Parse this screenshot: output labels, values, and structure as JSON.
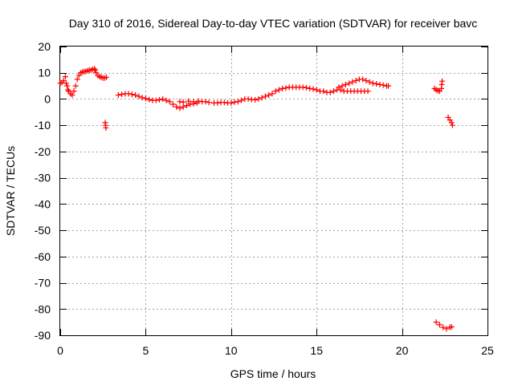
{
  "chart_data": {
    "type": "scatter",
    "title": "Day 310 of 2016, Sidereal Day-to-day VTEC variation (SDTVAR) for receiver bavc",
    "xlabel": "GPS time / hours",
    "ylabel": "SDTVAR / TECUs",
    "xlim": [
      0,
      25
    ],
    "ylim": [
      -90,
      20
    ],
    "xticks": [
      "0",
      "5",
      "10",
      "15",
      "20",
      "25"
    ],
    "yticks": [
      "20",
      "10",
      "0",
      "-10",
      "-20",
      "-30",
      "-40",
      "-50",
      "-60",
      "-70",
      "-80",
      "-90"
    ],
    "grid": true,
    "marker": "+",
    "color": "#ff0000",
    "series": [
      {
        "name": "SDTVAR",
        "points": [
          [
            0.0,
            6.0
          ],
          [
            0.1,
            6.3
          ],
          [
            0.2,
            7.0
          ],
          [
            0.3,
            8.5
          ],
          [
            0.35,
            6.0
          ],
          [
            0.4,
            5.0
          ],
          [
            0.45,
            3.5
          ],
          [
            0.5,
            3.0
          ],
          [
            0.6,
            2.0
          ],
          [
            0.7,
            1.5
          ],
          [
            0.8,
            3.0
          ],
          [
            0.9,
            5.0
          ],
          [
            1.0,
            7.5
          ],
          [
            1.1,
            9.0
          ],
          [
            1.2,
            10.0
          ],
          [
            1.3,
            10.3
          ],
          [
            1.4,
            10.5
          ],
          [
            1.5,
            10.5
          ],
          [
            1.6,
            10.8
          ],
          [
            1.7,
            11.0
          ],
          [
            1.8,
            11.0
          ],
          [
            1.9,
            11.3
          ],
          [
            2.0,
            11.5
          ],
          [
            2.05,
            11.0
          ],
          [
            2.1,
            10.0
          ],
          [
            2.2,
            9.0
          ],
          [
            2.3,
            8.5
          ],
          [
            2.4,
            8.3
          ],
          [
            2.5,
            8.0
          ],
          [
            2.6,
            8.0
          ],
          [
            2.7,
            8.3
          ],
          [
            2.63,
            -9.0
          ],
          [
            2.65,
            -10.0
          ],
          [
            2.67,
            -11.0
          ],
          [
            3.4,
            1.5
          ],
          [
            3.6,
            1.8
          ],
          [
            3.8,
            2.0
          ],
          [
            4.0,
            2.0
          ],
          [
            4.2,
            1.8
          ],
          [
            4.4,
            1.5
          ],
          [
            4.6,
            1.0
          ],
          [
            4.8,
            0.5
          ],
          [
            5.0,
            0.2
          ],
          [
            5.2,
            -0.2
          ],
          [
            5.4,
            -0.5
          ],
          [
            5.6,
            -0.5
          ],
          [
            5.8,
            -0.3
          ],
          [
            6.0,
            0.0
          ],
          [
            6.2,
            -0.5
          ],
          [
            6.4,
            -1.0
          ],
          [
            6.6,
            -2.0
          ],
          [
            6.8,
            -3.0
          ],
          [
            7.0,
            -3.5
          ],
          [
            7.2,
            -3.0
          ],
          [
            7.4,
            -2.5
          ],
          [
            7.6,
            -2.0
          ],
          [
            7.8,
            -1.8
          ],
          [
            8.0,
            -1.5
          ],
          [
            7.0,
            -1.0
          ],
          [
            7.2,
            -1.2
          ],
          [
            7.5,
            -0.8
          ],
          [
            7.8,
            -1.0
          ],
          [
            8.1,
            -0.8
          ],
          [
            8.3,
            -1.0
          ],
          [
            8.5,
            -1.0
          ],
          [
            8.7,
            -1.3
          ],
          [
            9.0,
            -1.5
          ],
          [
            9.2,
            -1.5
          ],
          [
            9.4,
            -1.3
          ],
          [
            9.6,
            -1.3
          ],
          [
            9.8,
            -1.5
          ],
          [
            10.0,
            -1.5
          ],
          [
            10.2,
            -1.2
          ],
          [
            10.4,
            -1.0
          ],
          [
            10.6,
            -0.5
          ],
          [
            10.8,
            0.0
          ],
          [
            11.0,
            0.0
          ],
          [
            11.2,
            -0.2
          ],
          [
            11.4,
            -0.3
          ],
          [
            11.6,
            0.0
          ],
          [
            11.8,
            0.5
          ],
          [
            12.0,
            1.0
          ],
          [
            12.2,
            1.5
          ],
          [
            12.4,
            2.0
          ],
          [
            12.6,
            3.0
          ],
          [
            12.8,
            3.5
          ],
          [
            13.0,
            4.0
          ],
          [
            13.2,
            4.2
          ],
          [
            13.4,
            4.5
          ],
          [
            13.6,
            4.5
          ],
          [
            13.8,
            4.5
          ],
          [
            14.0,
            4.5
          ],
          [
            14.2,
            4.5
          ],
          [
            14.4,
            4.3
          ],
          [
            14.6,
            4.0
          ],
          [
            14.8,
            3.8
          ],
          [
            15.0,
            3.5
          ],
          [
            15.2,
            3.0
          ],
          [
            15.4,
            3.0
          ],
          [
            15.6,
            2.5
          ],
          [
            15.8,
            2.5
          ],
          [
            16.0,
            3.0
          ],
          [
            16.2,
            3.5
          ],
          [
            16.4,
            3.5
          ],
          [
            16.6,
            3.0
          ],
          [
            16.8,
            3.0
          ],
          [
            16.3,
            4.5
          ],
          [
            16.5,
            5.0
          ],
          [
            16.7,
            5.5
          ],
          [
            16.9,
            6.0
          ],
          [
            17.1,
            6.5
          ],
          [
            17.3,
            7.0
          ],
          [
            17.5,
            7.5
          ],
          [
            17.7,
            7.5
          ],
          [
            17.0,
            3.0
          ],
          [
            17.2,
            3.0
          ],
          [
            17.4,
            3.0
          ],
          [
            17.6,
            3.0
          ],
          [
            17.8,
            3.0
          ],
          [
            18.0,
            3.0
          ],
          [
            17.9,
            7.0
          ],
          [
            18.1,
            6.5
          ],
          [
            18.3,
            6.0
          ],
          [
            18.5,
            5.8
          ],
          [
            18.7,
            5.5
          ],
          [
            18.9,
            5.3
          ],
          [
            19.1,
            5.0
          ],
          [
            19.2,
            5.0
          ],
          [
            21.9,
            4.0
          ],
          [
            22.0,
            3.5
          ],
          [
            22.1,
            3.2
          ],
          [
            22.2,
            3.0
          ],
          [
            22.3,
            4.0
          ],
          [
            22.32,
            5.5
          ],
          [
            22.35,
            6.8
          ],
          [
            22.7,
            -7.0
          ],
          [
            22.8,
            -8.0
          ],
          [
            22.9,
            -9.0
          ],
          [
            22.95,
            -10.0
          ],
          [
            22.0,
            -85.0
          ],
          [
            22.2,
            -86.0
          ],
          [
            22.4,
            -87.0
          ],
          [
            22.6,
            -87.5
          ],
          [
            22.8,
            -87.0
          ],
          [
            22.9,
            -86.8
          ]
        ]
      }
    ]
  }
}
